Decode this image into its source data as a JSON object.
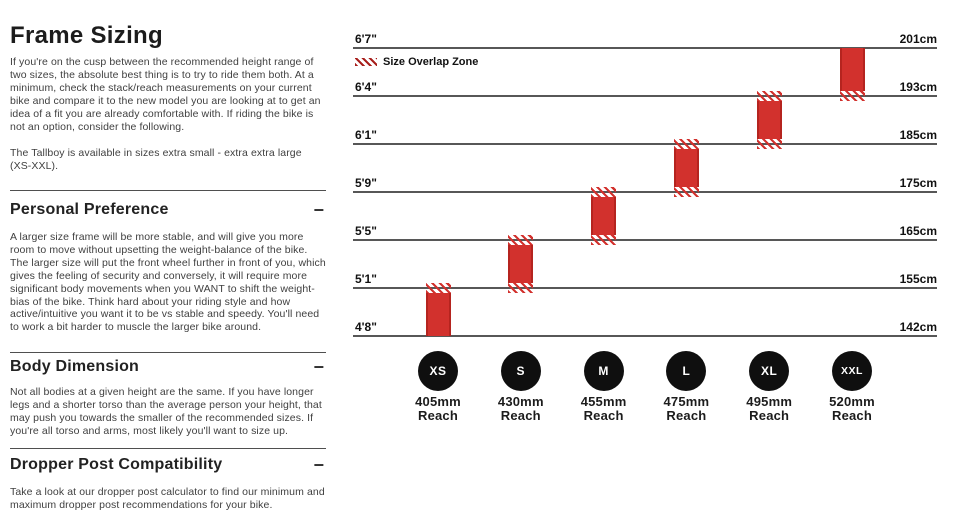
{
  "page": {
    "title": "Frame Sizing",
    "intro_p1": "If you're on the cusp between the recommended height range of two sizes, the absolute best thing is to try to ride them both. At a minimum, check the stack/reach measurements on your current bike and compare it to the new model you are looking at to get an idea of a fit you are already comfortable with. If riding the bike is not an option, consider the following.",
    "intro_p2": "The Tallboy is available in sizes extra small - extra extra large (XS-XXL)."
  },
  "ui": {
    "collapse_glyph": "−"
  },
  "sections": [
    {
      "heading": "Personal Preference",
      "body": "A larger size frame will be more stable, and will give you more room to move without upsetting the weight-balance of the bike. The larger size will put the front wheel further in front of you, which gives the feeling of security and conversely, it will require more significant body movements when you WANT to shift the weight-bias of the bike. Think hard about your riding style and how active/intuitive you want it to be vs stable and speedy. You'll need to work a bit harder to muscle the larger bike around."
    },
    {
      "heading": "Body Dimension",
      "body": "Not all bodies at a given height are the same. If you have longer legs and a shorter torso than the average person your height, that may push you towards the smaller of the recommended sizes. If you're all torso and arms, most likely you'll want to size up."
    },
    {
      "heading": "Dropper Post Compatibility",
      "body": "Take a look at our dropper post calculator to find our minimum and maximum dropper post recommendations for your bike."
    }
  ],
  "chart_data": {
    "type": "bar",
    "title": "",
    "legend_label": "Size Overlap Zone",
    "legend_position": "top-left",
    "grid": true,
    "reach_caption": "Reach",
    "rows": [
      {
        "height_ft": "6'7\"",
        "height_cm": "201cm"
      },
      {
        "height_ft": "6'4\"",
        "height_cm": "193cm"
      },
      {
        "height_ft": "6'1\"",
        "height_cm": "185cm"
      },
      {
        "height_ft": "5'9\"",
        "height_cm": "175cm"
      },
      {
        "height_ft": "5'5\"",
        "height_cm": "165cm"
      },
      {
        "height_ft": "5'1\"",
        "height_cm": "155cm"
      },
      {
        "height_ft": "4'8\"",
        "height_cm": "142cm"
      }
    ],
    "sizes": [
      {
        "label": "XS",
        "reach": "405mm",
        "min_height": "4'8\"",
        "max_height": "5'1\"",
        "min_cm": 142,
        "max_cm": 155,
        "overlap_top": true,
        "overlap_bottom": false
      },
      {
        "label": "S",
        "reach": "430mm",
        "min_height": "5'1\"",
        "max_height": "5'5\"",
        "min_cm": 155,
        "max_cm": 165,
        "overlap_top": true,
        "overlap_bottom": true
      },
      {
        "label": "M",
        "reach": "455mm",
        "min_height": "5'5\"",
        "max_height": "5'9\"",
        "min_cm": 165,
        "max_cm": 175,
        "overlap_top": true,
        "overlap_bottom": true
      },
      {
        "label": "L",
        "reach": "475mm",
        "min_height": "5'9\"",
        "max_height": "6'1\"",
        "min_cm": 175,
        "max_cm": 185,
        "overlap_top": true,
        "overlap_bottom": true
      },
      {
        "label": "XL",
        "reach": "495mm",
        "min_height": "6'1\"",
        "max_height": "6'4\"",
        "min_cm": 185,
        "max_cm": 193,
        "overlap_top": true,
        "overlap_bottom": true
      },
      {
        "label": "XXL",
        "reach": "520mm",
        "min_height": "6'4\"",
        "max_height": "6'7\"",
        "min_cm": 193,
        "max_cm": 201,
        "overlap_top": false,
        "overlap_bottom": true
      }
    ],
    "colors": {
      "bar": "#d2312d",
      "bar_edge": "#b5241f",
      "size_circle": "#0f0f0f"
    }
  }
}
